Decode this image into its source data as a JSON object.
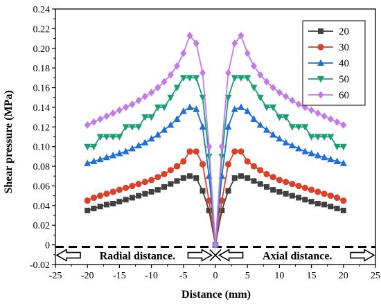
{
  "chart_data": {
    "type": "line",
    "xlabel": "Distance (mm)",
    "ylabel": "Shear pressure (MPa)",
    "xlim": [
      -25,
      25
    ],
    "ylim": [
      -0.02,
      0.24
    ],
    "xticks": [
      -25,
      -20,
      -15,
      -10,
      -5,
      0,
      5,
      10,
      15,
      20,
      25
    ],
    "xtick_labels": [
      "-25",
      "-20",
      "-15",
      "-10",
      "-5",
      "0",
      "5",
      "10",
      "15",
      "20",
      "25"
    ],
    "yticks": [
      -0.02,
      0,
      0.02,
      0.04,
      0.06,
      0.08,
      0.1,
      0.12,
      0.14,
      0.16,
      0.18,
      0.2,
      0.22,
      0.24
    ],
    "ytick_labels": [
      "-0.02",
      "0",
      "0.02",
      "0.04",
      "0.06",
      "0.08",
      "0.10",
      "0.12",
      "0.14",
      "0.16",
      "0.18",
      "0.20",
      "0.22",
      "0.24"
    ],
    "grid": false,
    "legend_position": "top-right",
    "x": [
      -20,
      -19,
      -18,
      -17,
      -16,
      -15,
      -14,
      -13,
      -12,
      -11,
      -10,
      -9,
      -8,
      -7,
      -6,
      -5,
      -4,
      -3,
      -2,
      -1,
      0,
      1,
      2,
      3,
      4,
      5,
      6,
      7,
      8,
      9,
      10,
      11,
      12,
      13,
      14,
      15,
      16,
      17,
      18,
      19,
      20
    ],
    "series": [
      {
        "name": "20",
        "color": "#404040",
        "marker": "square",
        "values": [
          0.035,
          0.037,
          0.039,
          0.041,
          0.042,
          0.044,
          0.046,
          0.048,
          0.05,
          0.052,
          0.054,
          0.056,
          0.059,
          0.062,
          0.065,
          0.068,
          0.07,
          0.068,
          0.055,
          0.035,
          0.0,
          0.035,
          0.055,
          0.068,
          0.07,
          0.068,
          0.065,
          0.062,
          0.059,
          0.056,
          0.054,
          0.052,
          0.05,
          0.048,
          0.046,
          0.044,
          0.042,
          0.041,
          0.039,
          0.037,
          0.035
        ]
      },
      {
        "name": "30",
        "color": "#d9412b",
        "marker": "circle",
        "values": [
          0.045,
          0.048,
          0.05,
          0.052,
          0.054,
          0.056,
          0.058,
          0.06,
          0.062,
          0.064,
          0.066,
          0.069,
          0.072,
          0.076,
          0.08,
          0.085,
          0.095,
          0.095,
          0.082,
          0.045,
          0.0,
          0.045,
          0.082,
          0.095,
          0.095,
          0.085,
          0.08,
          0.076,
          0.072,
          0.069,
          0.066,
          0.064,
          0.062,
          0.06,
          0.058,
          0.056,
          0.054,
          0.052,
          0.05,
          0.048,
          0.045
        ]
      },
      {
        "name": "40",
        "color": "#1f6fd6",
        "marker": "triangle-up",
        "values": [
          0.083,
          0.085,
          0.087,
          0.089,
          0.091,
          0.093,
          0.095,
          0.098,
          0.101,
          0.104,
          0.108,
          0.112,
          0.117,
          0.122,
          0.128,
          0.136,
          0.14,
          0.138,
          0.12,
          0.07,
          0.0,
          0.07,
          0.12,
          0.138,
          0.14,
          0.136,
          0.128,
          0.122,
          0.117,
          0.112,
          0.108,
          0.104,
          0.101,
          0.098,
          0.095,
          0.093,
          0.091,
          0.089,
          0.087,
          0.085,
          0.083
        ]
      },
      {
        "name": "50",
        "color": "#1a9e74",
        "marker": "triangle-down",
        "values": [
          0.1,
          0.1,
          0.11,
          0.11,
          0.11,
          0.11,
          0.12,
          0.12,
          0.12,
          0.13,
          0.13,
          0.14,
          0.14,
          0.15,
          0.16,
          0.17,
          0.17,
          0.17,
          0.15,
          0.09,
          0.0,
          0.09,
          0.15,
          0.17,
          0.17,
          0.17,
          0.16,
          0.15,
          0.14,
          0.14,
          0.13,
          0.13,
          0.12,
          0.12,
          0.12,
          0.11,
          0.11,
          0.11,
          0.11,
          0.1,
          0.1
        ]
      },
      {
        "name": "60",
        "color": "#c27ae8",
        "marker": "diamond",
        "values": [
          0.122,
          0.125,
          0.128,
          0.131,
          0.134,
          0.137,
          0.14,
          0.143,
          0.147,
          0.151,
          0.155,
          0.16,
          0.166,
          0.173,
          0.182,
          0.195,
          0.213,
          0.205,
          0.175,
          0.1,
          0.0,
          0.1,
          0.175,
          0.205,
          0.213,
          0.195,
          0.182,
          0.173,
          0.166,
          0.16,
          0.155,
          0.151,
          0.147,
          0.143,
          0.14,
          0.137,
          0.134,
          0.131,
          0.128,
          0.125,
          0.122
        ]
      }
    ],
    "annotations": {
      "radial_label": "Radial distance.",
      "axial_label": "Axial distance."
    }
  }
}
